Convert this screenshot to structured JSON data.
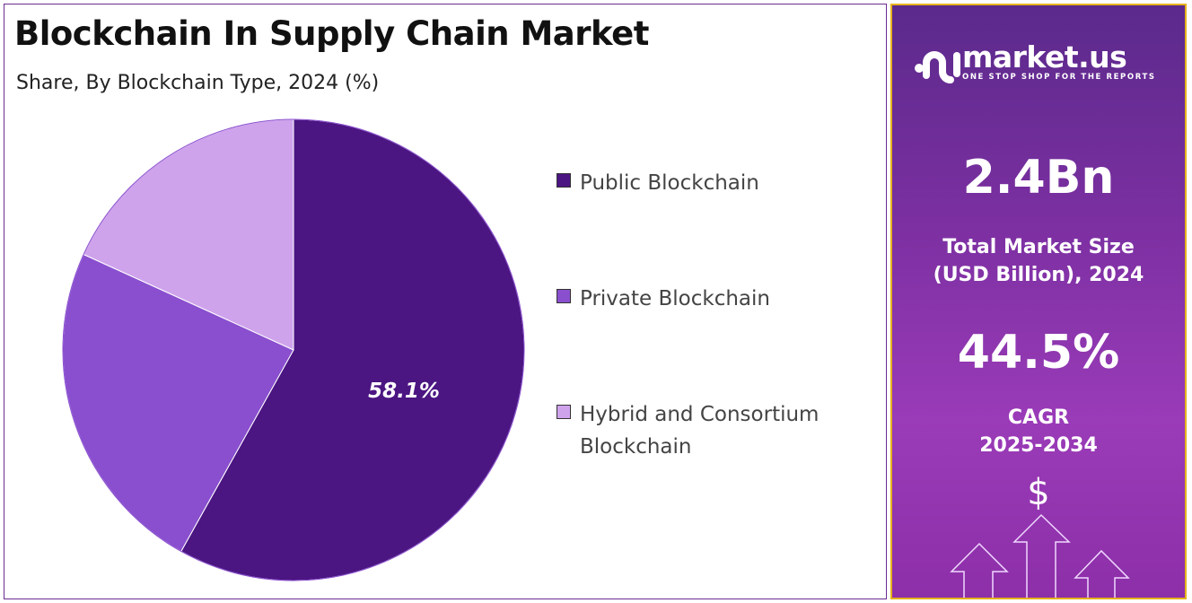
{
  "header": {
    "title": "Blockchain In Supply Chain Market",
    "subtitle": "Share, By Blockchain Type, 2024 (%)"
  },
  "chart_data": {
    "type": "pie",
    "title": "Blockchain In Supply Chain Market",
    "subtitle": "Share, By Blockchain Type, 2024 (%)",
    "categories": [
      "Public Blockchain",
      "Private Blockchain",
      "Hybrid and Consortium Blockchain"
    ],
    "values": [
      58.1,
      23.7,
      18.2
    ],
    "colors": [
      "#4b1582",
      "#8a4fcf",
      "#cfa3ec"
    ],
    "data_labels": [
      "58.1%",
      "",
      ""
    ],
    "legend_position": "right"
  },
  "legend": [
    {
      "label": "Public Blockchain"
    },
    {
      "label": "Private Blockchain"
    },
    {
      "label": "Hybrid and Consortium Blockchain"
    }
  ],
  "sidebar": {
    "brand": "market.us",
    "tagline": "ONE STOP SHOP FOR THE REPORTS",
    "market_size_value": "2.4Bn",
    "market_size_label_1": "Total Market Size",
    "market_size_label_2": "(USD Billion), 2024",
    "cagr_value": "44.5%",
    "cagr_label_1": "CAGR",
    "cagr_label_2": "2025-2034",
    "dollar_symbol": "$"
  }
}
